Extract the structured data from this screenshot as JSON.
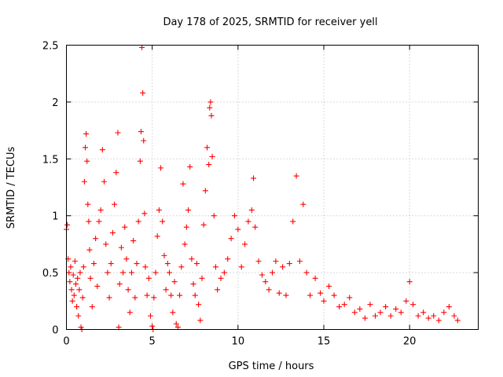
{
  "chart_data": {
    "type": "scatter",
    "title": "Day 178 of 2025, SRMTID for receiver yell",
    "xlabel": "GPS time / hours",
    "ylabel": "SRMTID / TECUs",
    "xlim": [
      0,
      24
    ],
    "ylim": [
      0,
      2.5
    ],
    "xticks": [
      0,
      5,
      10,
      15,
      20
    ],
    "yticks": [
      0,
      0.5,
      1,
      1.5,
      2,
      2.5
    ],
    "xtick_labels": [
      "0",
      "5",
      "10",
      "15",
      "20"
    ],
    "ytick_labels": [
      "0",
      "0.5",
      "1",
      "1.5",
      "2",
      "2.5"
    ],
    "grid": true,
    "marker": "+",
    "series": [
      {
        "name": "SRMTID",
        "color": "#ff0000",
        "points": [
          [
            0.0,
            0.88
          ],
          [
            0.05,
            0.92
          ],
          [
            0.1,
            0.62
          ],
          [
            0.15,
            0.5
          ],
          [
            0.2,
            0.42
          ],
          [
            0.25,
            0.55
          ],
          [
            0.3,
            0.35
          ],
          [
            0.35,
            0.25
          ],
          [
            0.4,
            0.48
          ],
          [
            0.45,
            0.3
          ],
          [
            0.5,
            0.6
          ],
          [
            0.55,
            0.4
          ],
          [
            0.6,
            0.2
          ],
          [
            0.65,
            0.45
          ],
          [
            0.7,
            0.12
          ],
          [
            0.75,
            0.35
          ],
          [
            0.8,
            0.5
          ],
          [
            0.85,
            0.02
          ],
          [
            0.9,
            0.0
          ],
          [
            0.95,
            0.28
          ],
          [
            1.0,
            0.55
          ],
          [
            1.05,
            1.3
          ],
          [
            1.1,
            1.6
          ],
          [
            1.15,
            1.72
          ],
          [
            1.2,
            1.48
          ],
          [
            1.25,
            1.1
          ],
          [
            1.3,
            0.95
          ],
          [
            1.35,
            0.7
          ],
          [
            1.4,
            0.45
          ],
          [
            1.5,
            0.2
          ],
          [
            1.6,
            0.58
          ],
          [
            1.7,
            0.8
          ],
          [
            1.8,
            0.38
          ],
          [
            1.9,
            0.95
          ],
          [
            2.0,
            1.05
          ],
          [
            2.1,
            1.58
          ],
          [
            2.2,
            1.3
          ],
          [
            2.3,
            0.75
          ],
          [
            2.4,
            0.5
          ],
          [
            2.5,
            0.28
          ],
          [
            2.6,
            0.58
          ],
          [
            2.7,
            0.85
          ],
          [
            2.8,
            1.1
          ],
          [
            2.9,
            1.38
          ],
          [
            3.0,
            1.73
          ],
          [
            3.05,
            0.02
          ],
          [
            3.1,
            0.4
          ],
          [
            3.2,
            0.72
          ],
          [
            3.3,
            0.5
          ],
          [
            3.4,
            0.9
          ],
          [
            3.5,
            0.62
          ],
          [
            3.6,
            0.35
          ],
          [
            3.7,
            0.15
          ],
          [
            3.8,
            0.5
          ],
          [
            3.9,
            0.78
          ],
          [
            4.0,
            0.28
          ],
          [
            4.1,
            0.58
          ],
          [
            4.2,
            0.95
          ],
          [
            4.3,
            1.48
          ],
          [
            4.35,
            1.74
          ],
          [
            4.4,
            2.48
          ],
          [
            4.45,
            2.08
          ],
          [
            4.5,
            1.66
          ],
          [
            4.55,
            1.02
          ],
          [
            4.6,
            0.55
          ],
          [
            4.7,
            0.3
          ],
          [
            4.8,
            0.45
          ],
          [
            4.9,
            0.12
          ],
          [
            5.0,
            0.03
          ],
          [
            5.05,
            0.0
          ],
          [
            5.1,
            0.28
          ],
          [
            5.2,
            0.5
          ],
          [
            5.3,
            0.82
          ],
          [
            5.4,
            1.05
          ],
          [
            5.5,
            1.42
          ],
          [
            5.6,
            0.95
          ],
          [
            5.7,
            0.65
          ],
          [
            5.8,
            0.35
          ],
          [
            5.9,
            0.58
          ],
          [
            6.0,
            0.5
          ],
          [
            6.1,
            0.3
          ],
          [
            6.2,
            0.15
          ],
          [
            6.3,
            0.42
          ],
          [
            6.4,
            0.05
          ],
          [
            6.5,
            0.02
          ],
          [
            6.6,
            0.3
          ],
          [
            6.7,
            0.55
          ],
          [
            6.8,
            1.28
          ],
          [
            6.9,
            0.75
          ],
          [
            7.0,
            0.9
          ],
          [
            7.1,
            1.05
          ],
          [
            7.2,
            1.43
          ],
          [
            7.3,
            0.62
          ],
          [
            7.4,
            0.4
          ],
          [
            7.5,
            0.3
          ],
          [
            7.6,
            0.58
          ],
          [
            7.7,
            0.22
          ],
          [
            7.8,
            0.08
          ],
          [
            7.9,
            0.45
          ],
          [
            8.0,
            0.92
          ],
          [
            8.1,
            1.22
          ],
          [
            8.2,
            1.6
          ],
          [
            8.3,
            1.45
          ],
          [
            8.35,
            1.95
          ],
          [
            8.4,
            2.0
          ],
          [
            8.45,
            1.88
          ],
          [
            8.5,
            1.52
          ],
          [
            8.6,
            1.0
          ],
          [
            8.7,
            0.55
          ],
          [
            8.8,
            0.35
          ],
          [
            9.0,
            0.45
          ],
          [
            9.2,
            0.5
          ],
          [
            9.4,
            0.62
          ],
          [
            9.6,
            0.8
          ],
          [
            9.8,
            1.0
          ],
          [
            10.0,
            0.88
          ],
          [
            10.2,
            0.55
          ],
          [
            10.4,
            0.75
          ],
          [
            10.6,
            0.95
          ],
          [
            10.8,
            1.05
          ],
          [
            10.9,
            1.33
          ],
          [
            11.0,
            0.9
          ],
          [
            11.2,
            0.6
          ],
          [
            11.4,
            0.48
          ],
          [
            11.6,
            0.42
          ],
          [
            11.8,
            0.35
          ],
          [
            12.0,
            0.5
          ],
          [
            12.2,
            0.6
          ],
          [
            12.4,
            0.32
          ],
          [
            12.6,
            0.55
          ],
          [
            12.8,
            0.3
          ],
          [
            13.0,
            0.58
          ],
          [
            13.2,
            0.95
          ],
          [
            13.4,
            1.35
          ],
          [
            13.6,
            0.6
          ],
          [
            13.8,
            1.1
          ],
          [
            14.0,
            0.5
          ],
          [
            14.2,
            0.3
          ],
          [
            14.5,
            0.45
          ],
          [
            14.8,
            0.32
          ],
          [
            15.0,
            0.25
          ],
          [
            15.3,
            0.38
          ],
          [
            15.6,
            0.3
          ],
          [
            15.9,
            0.2
          ],
          [
            16.2,
            0.22
          ],
          [
            16.5,
            0.28
          ],
          [
            16.8,
            0.15
          ],
          [
            17.1,
            0.18
          ],
          [
            17.4,
            0.1
          ],
          [
            17.7,
            0.22
          ],
          [
            18.0,
            0.12
          ],
          [
            18.3,
            0.15
          ],
          [
            18.6,
            0.2
          ],
          [
            18.9,
            0.12
          ],
          [
            19.2,
            0.18
          ],
          [
            19.5,
            0.15
          ],
          [
            19.8,
            0.25
          ],
          [
            20.0,
            0.42
          ],
          [
            20.2,
            0.22
          ],
          [
            20.5,
            0.12
          ],
          [
            20.8,
            0.15
          ],
          [
            21.1,
            0.1
          ],
          [
            21.4,
            0.12
          ],
          [
            21.7,
            0.08
          ],
          [
            22.0,
            0.15
          ],
          [
            22.3,
            0.2
          ],
          [
            22.6,
            0.12
          ],
          [
            22.8,
            0.08
          ]
        ]
      }
    ]
  }
}
